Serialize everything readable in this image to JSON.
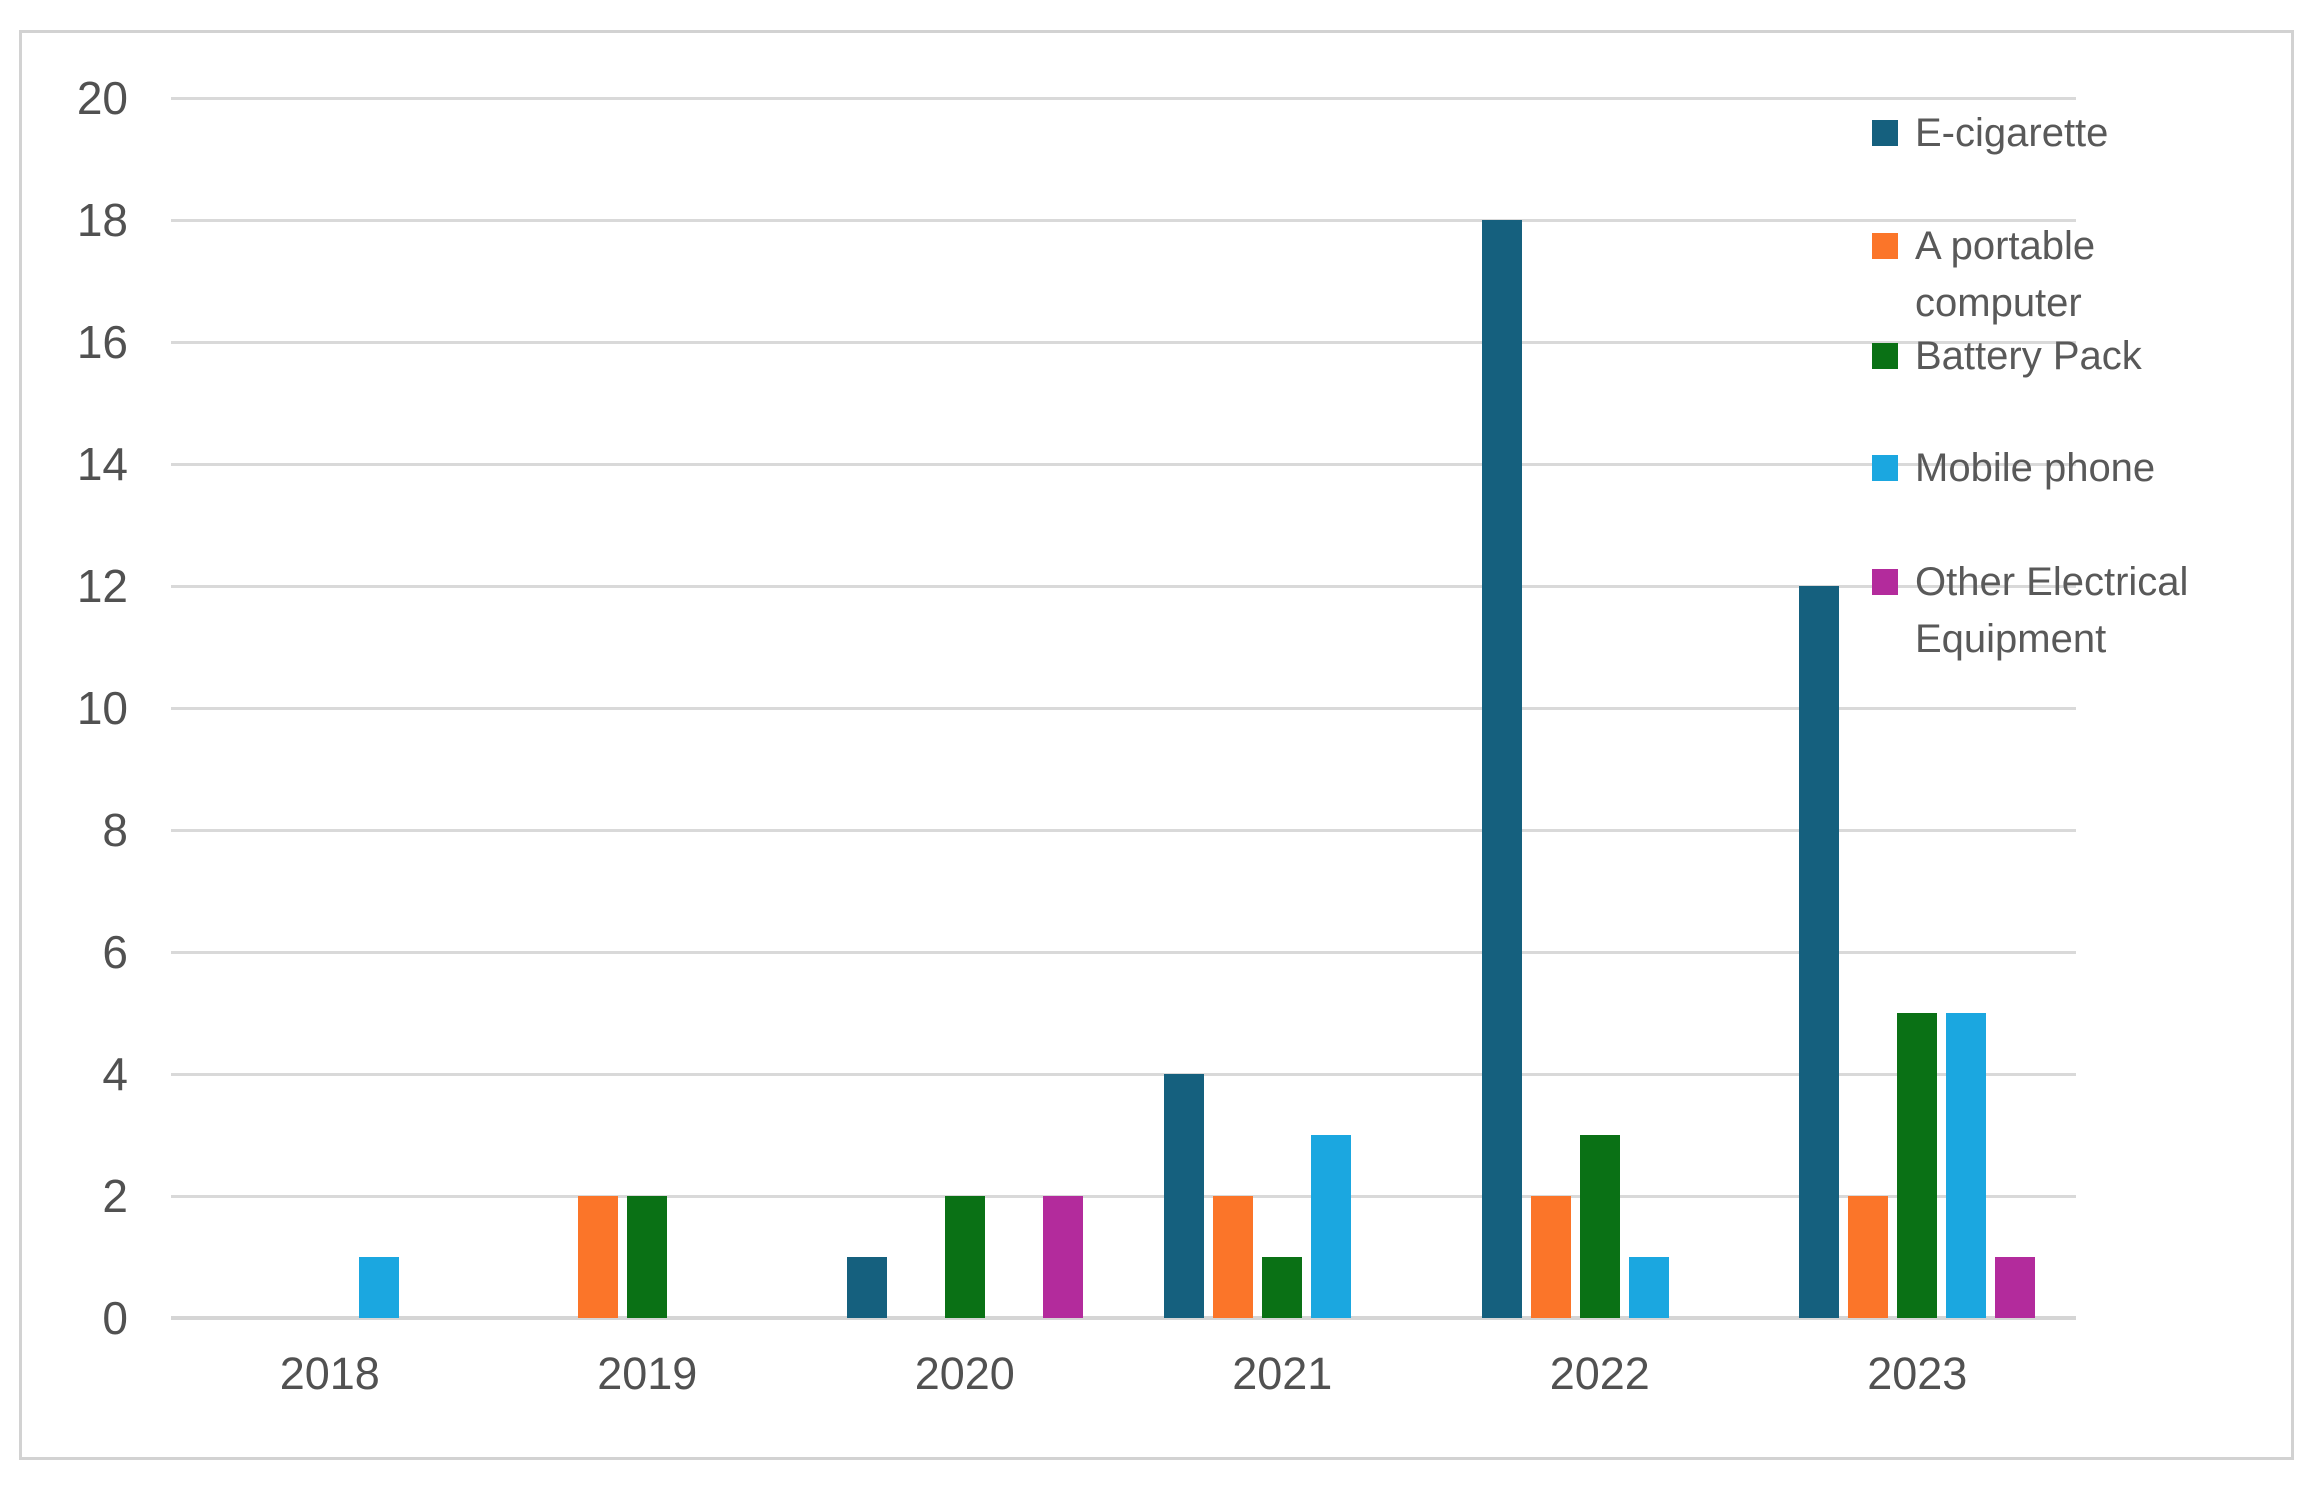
{
  "chart_data": {
    "type": "bar",
    "title": "",
    "xlabel": "",
    "ylabel": "",
    "categories": [
      "2018",
      "2019",
      "2020",
      "2021",
      "2022",
      "2023"
    ],
    "series": [
      {
        "name": "E-cigarette",
        "color": "#15607E",
        "legend_lines": [
          "E-cigarette"
        ],
        "values": [
          0,
          0,
          1,
          4,
          18,
          12
        ]
      },
      {
        "name": "A portable computer",
        "color": "#FB7529",
        "legend_lines": [
          " A portable",
          "computer"
        ],
        "values": [
          0,
          2,
          0,
          2,
          2,
          2
        ]
      },
      {
        "name": "Battery Pack",
        "color": "#0A7115",
        "legend_lines": [
          "Battery Pack"
        ],
        "values": [
          0,
          2,
          2,
          1,
          3,
          5
        ]
      },
      {
        "name": "Mobile phone",
        "color": "#1BA7E0",
        "legend_lines": [
          "Mobile phone"
        ],
        "values": [
          1,
          0,
          0,
          3,
          1,
          5
        ]
      },
      {
        "name": "Other Electrical Equipment",
        "color": "#B32B9C",
        "legend_lines": [
          "Other Electrical",
          "Equipment"
        ],
        "values": [
          0,
          0,
          2,
          0,
          0,
          1
        ]
      }
    ],
    "ylim": [
      0,
      20
    ],
    "ytick_step": 2,
    "yticks": [
      0,
      2,
      4,
      6,
      8,
      10,
      12,
      14,
      16,
      18,
      20
    ],
    "grid": true,
    "legend_position": "right",
    "colors": {
      "gridline": "#D9D9D9",
      "axis_line": "#D5D5D5",
      "axis_text": "#515151",
      "legend_text": "#595959",
      "frame_border": "#D2D2D2",
      "background": "#FFFFFF"
    }
  }
}
